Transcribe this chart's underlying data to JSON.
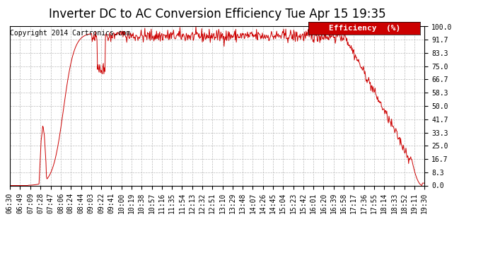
{
  "title": "Inverter DC to AC Conversion Efficiency Tue Apr 15 19:35",
  "copyright": "Copyright 2014 Cartronics.com",
  "legend_label": "Efficiency  (%)",
  "line_color": "#cc0000",
  "legend_bg": "#cc0000",
  "legend_text_color": "#ffffff",
  "background_color": "#ffffff",
  "plot_bg": "#ffffff",
  "grid_color": "#bbbbbb",
  "yticks": [
    0.0,
    8.3,
    16.7,
    25.0,
    33.3,
    41.7,
    50.0,
    58.3,
    66.7,
    75.0,
    83.3,
    91.7,
    100.0
  ],
  "ylim": [
    0.0,
    100.0
  ],
  "xtick_labels": [
    "06:30",
    "06:49",
    "07:09",
    "07:28",
    "07:47",
    "08:06",
    "08:24",
    "08:44",
    "09:03",
    "09:22",
    "09:41",
    "10:00",
    "10:19",
    "10:38",
    "10:57",
    "11:16",
    "11:35",
    "11:54",
    "12:13",
    "12:32",
    "12:51",
    "13:10",
    "13:29",
    "13:48",
    "14:07",
    "14:26",
    "14:45",
    "15:04",
    "15:23",
    "15:42",
    "16:01",
    "16:20",
    "16:39",
    "16:58",
    "17:17",
    "17:36",
    "17:55",
    "18:14",
    "18:33",
    "18:52",
    "19:11",
    "19:30"
  ],
  "title_fontsize": 12,
  "copyright_fontsize": 7,
  "tick_fontsize": 7,
  "legend_fontsize": 8
}
